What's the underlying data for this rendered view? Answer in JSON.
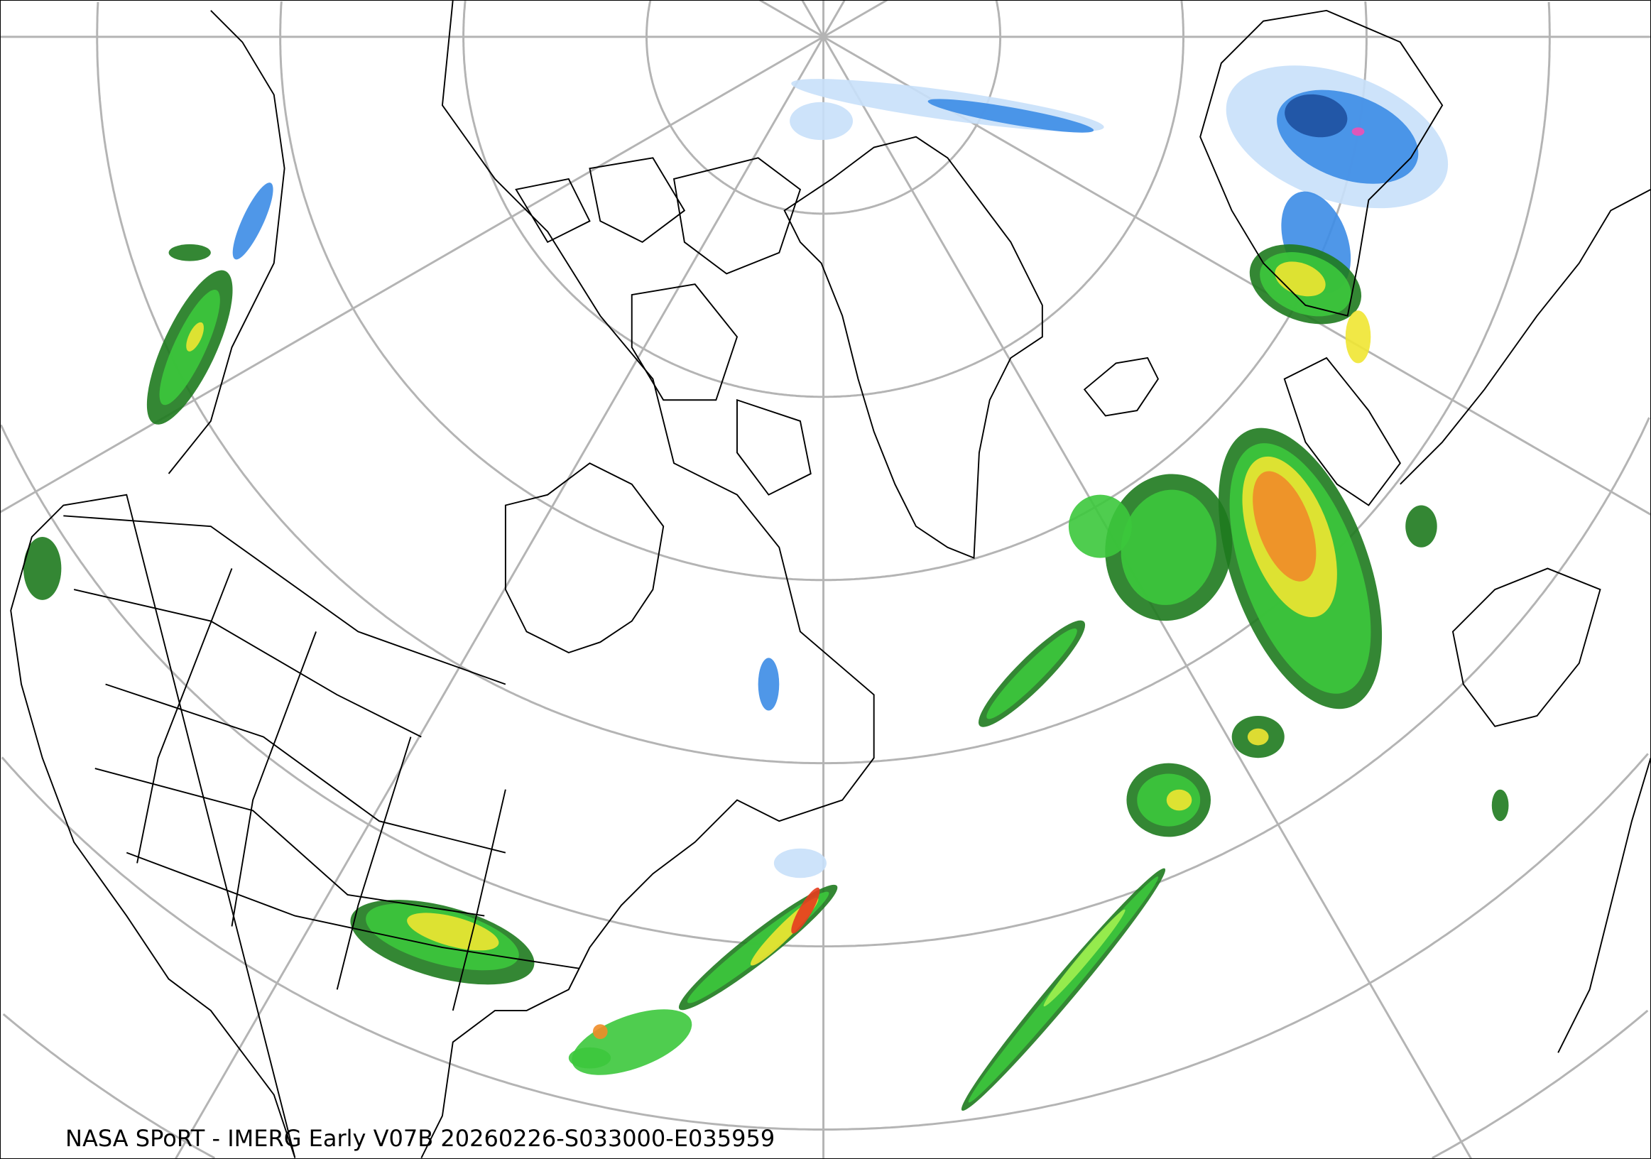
{
  "caption": "NASA SPoRT - IMERG Early V07B 20260226-S033000-E035959",
  "map": {
    "projection": "north polar stereographic",
    "graticule_color": "#b4b4b4",
    "coastline_color": "#000000",
    "precip_colors": {
      "light_blue": "#c8e0fa",
      "blue": "#3c8ce6",
      "dark_blue": "#1e50a0",
      "dark_green": "#1e7a1e",
      "green": "#3cc83c",
      "light_green": "#a0f050",
      "yellow": "#f0e632",
      "orange": "#f08c28",
      "red": "#e63c1e",
      "pink": "#f050b4"
    }
  }
}
